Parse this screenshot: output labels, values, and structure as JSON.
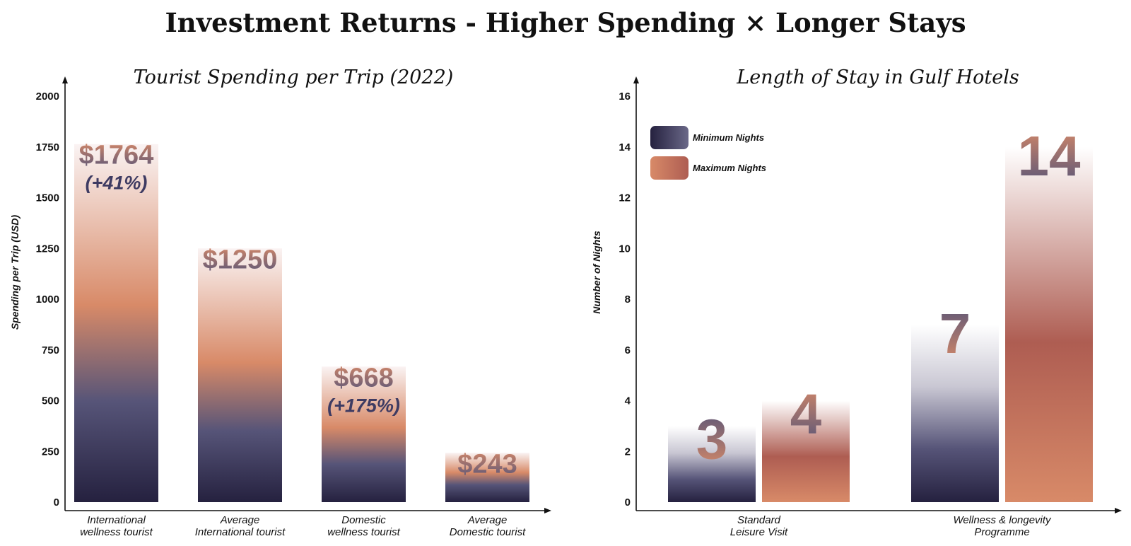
{
  "title": "Investment Returns - Higher Spending × Longer Stays",
  "colors": {
    "navy": "#25213f",
    "slate": "#565478",
    "coral": "#d88a68",
    "rust": "#ae5d52",
    "pale": "#faf3f3"
  },
  "chart_data": [
    {
      "type": "bar",
      "title": "Tourist Spending per Trip (2022)",
      "xlabel": "",
      "ylabel": "Spending per Trip (USD)",
      "ylim": [
        0,
        2000
      ],
      "yticks": [
        0,
        250,
        500,
        750,
        1000,
        1250,
        1500,
        1750,
        2000
      ],
      "categories": [
        [
          "International",
          "wellness tourist"
        ],
        [
          "Average",
          "International tourist"
        ],
        [
          "Domestic",
          "wellness tourist"
        ],
        [
          "Average",
          "Domestic  tourist"
        ]
      ],
      "values": [
        1764,
        1250,
        668,
        243
      ],
      "value_labels": [
        "$1764",
        "$1250",
        "$668",
        "$243"
      ],
      "annotations": [
        "(+41%)",
        "",
        "(+175%)",
        ""
      ]
    },
    {
      "type": "bar",
      "title": "Length of Stay in Gulf Hotels",
      "xlabel": "",
      "ylabel": "Number of Nights",
      "ylim": [
        0,
        16
      ],
      "yticks": [
        0,
        2,
        4,
        6,
        8,
        10,
        12,
        14,
        16
      ],
      "categories": [
        [
          "Standard",
          "Leisure Visit"
        ],
        [
          "Wellness & longevity",
          "Programme"
        ]
      ],
      "legend_position": "top-left",
      "series": [
        {
          "name": "Minimum Nights",
          "values": [
            3,
            7
          ],
          "value_labels": [
            "3",
            "7"
          ]
        },
        {
          "name": "Maximum Nights",
          "values": [
            4,
            14
          ],
          "value_labels": [
            "4",
            "14"
          ]
        }
      ]
    }
  ]
}
